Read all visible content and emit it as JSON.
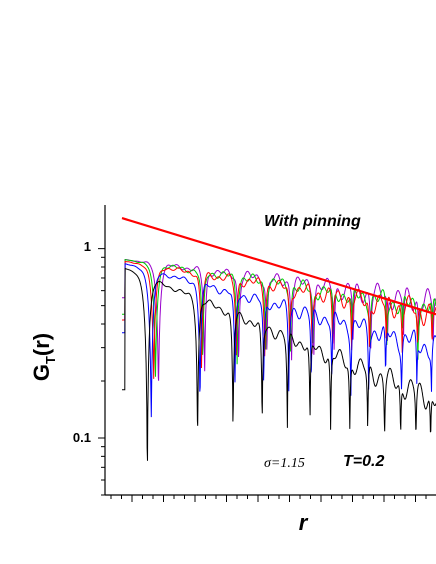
{
  "chart_data": {
    "type": "line",
    "xlabel": "r",
    "ylabel_main": "G",
    "ylabel_sub": "T",
    "ylabel_tail": "(r)",
    "y_scale": "log",
    "ylim": [
      0.05,
      1.7
    ],
    "y_ticks": [
      {
        "value": 1,
        "label": "1"
      },
      {
        "value": 0.1,
        "label": "0.1"
      }
    ],
    "x_tick_labels": "none",
    "annotations": {
      "pinning": "With pinning",
      "sigma": "σ=1.15",
      "temperature": "T=0.2"
    },
    "fit_line": {
      "color": "#ff0000",
      "y_start": 1.45,
      "y_end": 0.45
    },
    "series": [
      {
        "color": "#9900cc",
        "base_start": 0.88,
        "base_end": 0.52,
        "phase": 0.0,
        "depth": 0.85,
        "start": 0.55
      },
      {
        "color": "#00cc00",
        "base_start": 0.88,
        "base_end": 0.48,
        "phase": 0.05,
        "depth": 0.8,
        "start": 0.45
      },
      {
        "color": "#ff0000",
        "base_start": 0.86,
        "base_end": 0.46,
        "phase": 0.08,
        "depth": 0.8,
        "start": 0.42
      },
      {
        "color": "#0000ff",
        "base_start": 0.84,
        "base_end": 0.3,
        "phase": 0.12,
        "depth": 0.9,
        "start": 0.36
      },
      {
        "color": "#000000",
        "base_start": 0.8,
        "base_end": 0.16,
        "phase": 0.18,
        "depth": 0.97,
        "start": 0.18
      }
    ]
  }
}
